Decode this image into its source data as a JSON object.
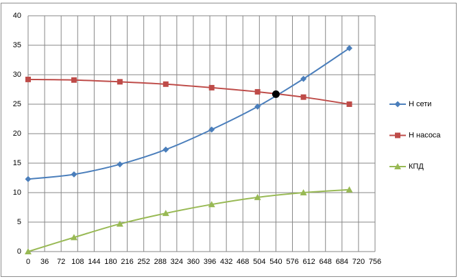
{
  "chart_data": {
    "type": "line",
    "x": [
      0,
      100,
      200,
      300,
      400,
      500,
      600,
      700
    ],
    "series": [
      {
        "name": "Н сети",
        "color": "#4a7ebb",
        "marker": "diamond",
        "values": [
          12.3,
          13.1,
          14.8,
          17.3,
          20.7,
          24.6,
          29.3,
          34.5
        ]
      },
      {
        "name": "Н насоса",
        "color": "#be4b48",
        "marker": "square",
        "values": [
          29.2,
          29.1,
          28.8,
          28.4,
          27.8,
          27.1,
          26.2,
          25.0
        ]
      },
      {
        "name": "КПД",
        "color": "#98b954",
        "marker": "triangle",
        "values": [
          0,
          2.4,
          4.7,
          6.5,
          8.0,
          9.2,
          10.0,
          10.5
        ]
      }
    ],
    "marker_point": {
      "x": 540,
      "y": 26.7,
      "color": "#000000"
    },
    "xlim": [
      0,
      756
    ],
    "xticks": [
      0,
      36,
      72,
      108,
      144,
      180,
      216,
      252,
      288,
      324,
      360,
      396,
      432,
      468,
      504,
      540,
      576,
      612,
      648,
      684,
      720,
      756
    ],
    "ylim": [
      0,
      40
    ],
    "yticks": [
      0,
      5,
      10,
      15,
      20,
      25,
      30,
      35,
      40
    ],
    "grid": true,
    "legend": "right"
  }
}
